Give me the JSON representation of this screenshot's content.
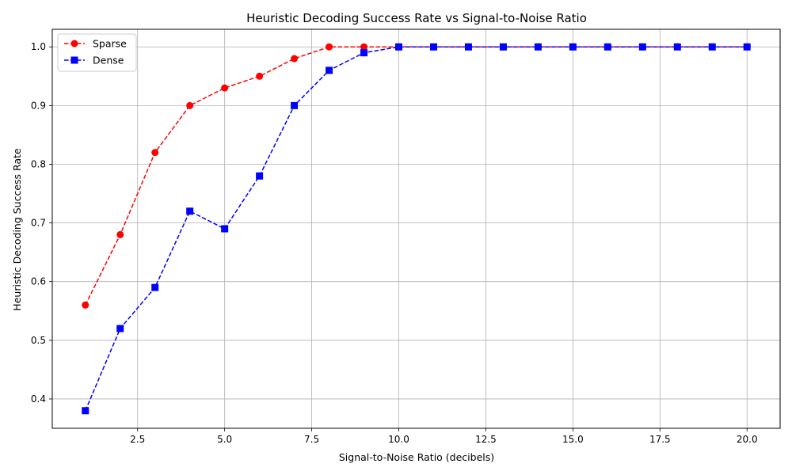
{
  "chart_data": {
    "type": "line",
    "title": "Heuristic Decoding Success Rate vs Signal-to-Noise Ratio",
    "xlabel": "Signal-to-Noise Ratio (decibels)",
    "ylabel": "Heuristic Decoding Success Rate",
    "xlim": [
      0.05,
      20.95
    ],
    "ylim": [
      0.35,
      1.03
    ],
    "xticks": [
      2.5,
      5.0,
      7.5,
      10.0,
      12.5,
      15.0,
      17.5,
      20.0
    ],
    "xtick_labels": [
      "2.5",
      "5.0",
      "7.5",
      "10.0",
      "12.5",
      "15.0",
      "17.5",
      "20.0"
    ],
    "yticks": [
      0.4,
      0.5,
      0.6,
      0.7,
      0.8,
      0.9,
      1.0
    ],
    "ytick_labels": [
      "0.4",
      "0.5",
      "0.6",
      "0.7",
      "0.8",
      "0.9",
      "1.0"
    ],
    "grid": true,
    "legend_position": "top-left",
    "x": [
      1,
      2,
      3,
      4,
      5,
      6,
      7,
      8,
      9,
      10,
      11,
      12,
      13,
      14,
      15,
      16,
      17,
      18,
      19,
      20
    ],
    "series": [
      {
        "name": "Sparse",
        "color": "#ff0000",
        "marker": "circle",
        "linestyle": "dashed",
        "values": [
          0.56,
          0.68,
          0.82,
          0.9,
          0.93,
          0.95,
          0.98,
          1.0,
          1.0,
          1.0,
          1.0,
          1.0,
          1.0,
          1.0,
          1.0,
          1.0,
          1.0,
          1.0,
          1.0,
          1.0
        ]
      },
      {
        "name": "Dense",
        "color": "#0000ff",
        "marker": "square",
        "linestyle": "dashed",
        "values": [
          0.38,
          0.52,
          0.59,
          0.72,
          0.69,
          0.78,
          0.9,
          0.96,
          0.99,
          1.0,
          1.0,
          1.0,
          1.0,
          1.0,
          1.0,
          1.0,
          1.0,
          1.0,
          1.0,
          1.0
        ]
      }
    ]
  }
}
